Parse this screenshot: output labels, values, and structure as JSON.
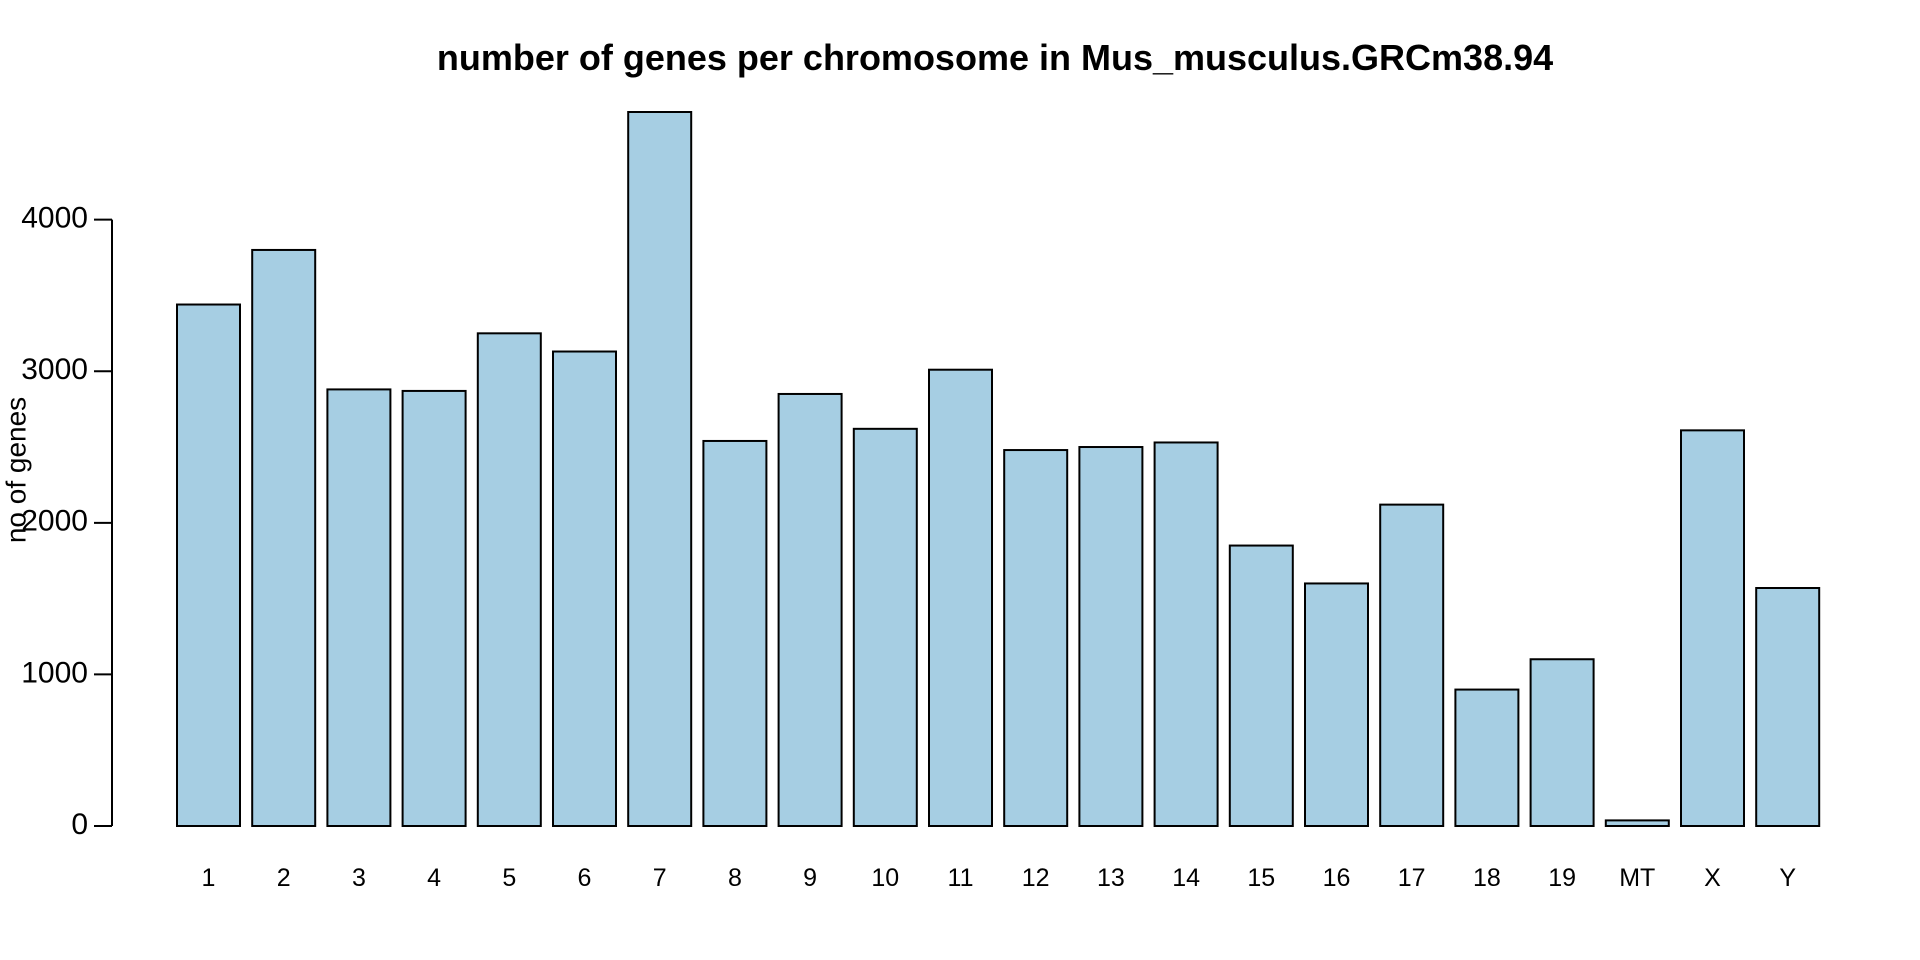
{
  "chart_data": {
    "type": "bar",
    "title": "number of genes per chromosome  in Mus_musculus.GRCm38.94",
    "xlabel": "",
    "ylabel": "no of genes",
    "categories": [
      "1",
      "2",
      "3",
      "4",
      "5",
      "6",
      "7",
      "8",
      "9",
      "10",
      "11",
      "12",
      "13",
      "14",
      "15",
      "16",
      "17",
      "18",
      "19",
      "MT",
      "X",
      "Y"
    ],
    "values": [
      3440,
      3800,
      2880,
      2870,
      3250,
      3130,
      4710,
      2540,
      2850,
      2620,
      3010,
      2480,
      2500,
      2530,
      1850,
      1600,
      2120,
      900,
      1100,
      37,
      2610,
      1570
    ],
    "ylim": [
      0,
      4710
    ],
    "yticks": [
      0,
      1000,
      2000,
      3000,
      4000
    ],
    "ytick_labels": [
      "0",
      "1000",
      "2000",
      "3000",
      "4000"
    ],
    "grid": false,
    "bar_color": "#a6cee3",
    "edge_color": "#000000"
  }
}
